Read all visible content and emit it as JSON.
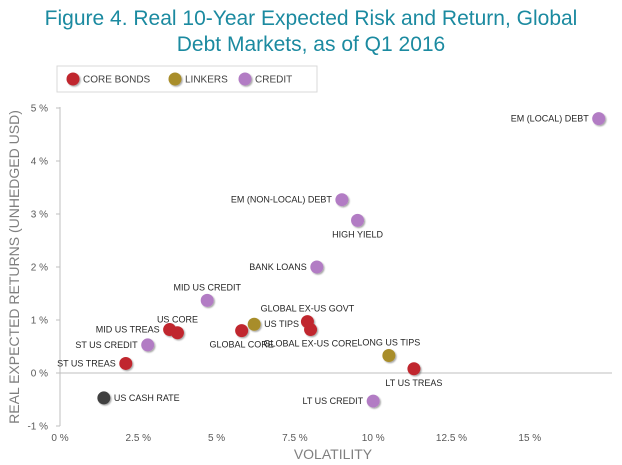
{
  "chart_data": {
    "type": "scatter",
    "title_lines": [
      "Figure 4. Real 10-Year Expected Risk and Return, Global",
      "Debt Markets, as of Q1 2016"
    ],
    "xlabel": "VOLATILITY",
    "ylabel": "REAL EXPECTED RETURNS (UNHEDGED USD)",
    "xlim": [
      0,
      17.5
    ],
    "ylim": [
      -1,
      5
    ],
    "x_ticks": [
      {
        "value": 0,
        "label": "0 %"
      },
      {
        "value": 2.5,
        "label": "2.5 %"
      },
      {
        "value": 5,
        "label": "5 %"
      },
      {
        "value": 7.5,
        "label": "7.5 %"
      },
      {
        "value": 10,
        "label": "10 %"
      },
      {
        "value": 12.5,
        "label": "12.5 %"
      },
      {
        "value": 15,
        "label": "15 %"
      }
    ],
    "y_ticks": [
      {
        "value": -1,
        "label": "-1 %"
      },
      {
        "value": 0,
        "label": "0 %"
      },
      {
        "value": 1,
        "label": "1 %"
      },
      {
        "value": 2,
        "label": "2 %"
      },
      {
        "value": 3,
        "label": "3 %"
      },
      {
        "value": 4,
        "label": "4 %"
      },
      {
        "value": 5,
        "label": "5 %"
      }
    ],
    "grid": false,
    "legend_placement": "top-left",
    "series": [
      {
        "name": "CORE BONDS",
        "color": "#c0282e",
        "points": [
          {
            "label": "ST US TREAS",
            "x": 2.1,
            "y": 0.18,
            "label_side": "left"
          },
          {
            "label": "MID US TREAS",
            "x": 3.5,
            "y": 0.82,
            "label_side": "left"
          },
          {
            "label": "US CORE",
            "x": 3.75,
            "y": 0.76,
            "label_side": "above"
          },
          {
            "label": "GLOBAL CORE",
            "x": 5.8,
            "y": 0.8,
            "label_side": "below"
          },
          {
            "label": "GLOBAL EX-US GOVT",
            "x": 7.9,
            "y": 0.97,
            "label_side": "above"
          },
          {
            "label": "GLOBAL EX-US CORE",
            "x": 8.0,
            "y": 0.82,
            "label_side": "below"
          },
          {
            "label": "LT US TREAS",
            "x": 11.3,
            "y": 0.08,
            "label_side": "below"
          }
        ]
      },
      {
        "name": "LINKERS",
        "color": "#a88d2a",
        "points": [
          {
            "label": "US TIPS",
            "x": 6.2,
            "y": 0.92,
            "label_side": "right"
          },
          {
            "label": "LONG US TIPS",
            "x": 10.5,
            "y": 0.33,
            "label_side": "above"
          }
        ]
      },
      {
        "name": "CREDIT",
        "color": "#b27cc4",
        "points": [
          {
            "label": "ST US CREDIT",
            "x": 2.8,
            "y": 0.53,
            "label_side": "left"
          },
          {
            "label": "MID US CREDIT",
            "x": 4.7,
            "y": 1.37,
            "label_side": "above"
          },
          {
            "label": "BANK LOANS",
            "x": 8.2,
            "y": 2.0,
            "label_side": "left"
          },
          {
            "label": "EM (NON-LOCAL) DEBT",
            "x": 9.0,
            "y": 3.27,
            "label_side": "left"
          },
          {
            "label": "HIGH YIELD",
            "x": 9.5,
            "y": 2.88,
            "label_side": "below"
          },
          {
            "label": "LT US CREDIT",
            "x": 10.0,
            "y": -0.53,
            "label_side": "left"
          },
          {
            "label": "EM (LOCAL) DEBT",
            "x": 17.2,
            "y": 4.8,
            "label_side": "left"
          }
        ]
      }
    ],
    "other_points": [
      {
        "label": "US CASH RATE",
        "x": 1.4,
        "y": -0.47,
        "color": "#3f3f3f",
        "label_side": "right"
      }
    ]
  }
}
